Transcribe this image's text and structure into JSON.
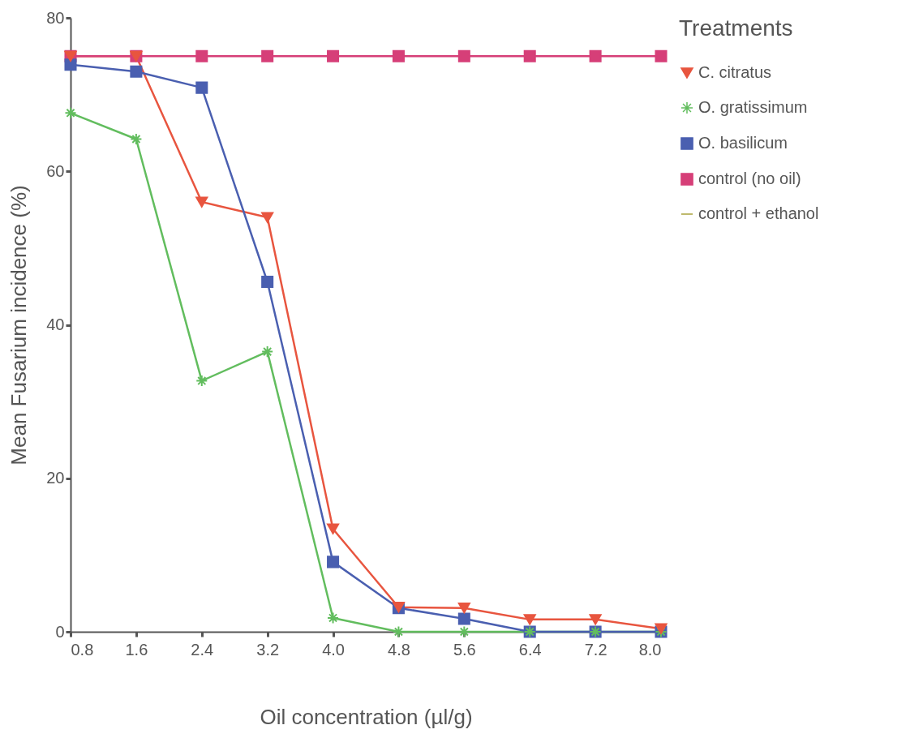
{
  "chart_data": {
    "type": "line",
    "xlabel": "Oil concentration (µl/g)",
    "ylabel": "Mean Fusarium incidence (%)",
    "legend_title": "Treatments",
    "x": [
      0.8,
      1.6,
      2.4,
      3.2,
      4.0,
      4.8,
      5.6,
      6.4,
      7.2,
      8.0
    ],
    "xlim": [
      0.8,
      8.0
    ],
    "xticks": [
      0.8,
      1.6,
      2.4,
      3.2,
      {
        "value": 4.0,
        "label": "4.0"
      },
      4.8,
      5.6,
      6.4,
      7.2,
      {
        "value": 8.0,
        "label": "8.0"
      }
    ],
    "ylim": [
      0,
      80
    ],
    "yticks": [
      0,
      20,
      40,
      60,
      80
    ],
    "grid": false,
    "legend": "right",
    "line_style": "solid",
    "series": [
      {
        "name": "C. citratus",
        "color": "#e8553f",
        "marker": "triangle-down",
        "values": [
          75,
          75,
          56,
          54,
          13.4,
          3.2,
          3.1,
          1.6,
          1.6,
          0.4
        ]
      },
      {
        "name": "O. gratissimum",
        "color": "#62bd5e",
        "marker": "cross",
        "values": [
          67.6,
          64.2,
          32.7,
          36.5,
          1.8,
          0,
          0,
          0,
          0,
          0
        ]
      },
      {
        "name": "O. basilicum",
        "color": "#4a5fb0",
        "marker": "square",
        "values": [
          73.9,
          73,
          70.9,
          45.6,
          9.1,
          3.1,
          1.7,
          0,
          0,
          0
        ]
      },
      {
        "name": "control (no oil)",
        "color": "#d63f78",
        "marker": "square",
        "values": [
          75,
          75,
          75,
          75,
          75,
          75,
          75,
          75,
          75,
          75
        ]
      },
      {
        "name": "control + ethanol",
        "color": "#a9a23c",
        "marker": "none",
        "values": [
          null,
          null,
          null,
          null,
          null,
          null,
          null,
          null,
          null,
          null
        ]
      }
    ]
  }
}
